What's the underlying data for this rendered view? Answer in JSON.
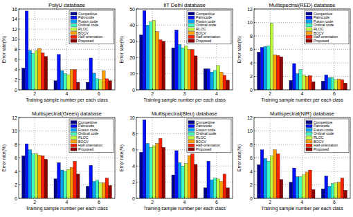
{
  "chart_data": [
    {
      "type": "bar",
      "title": "PolyU database",
      "x_label": "Training sample number per each class",
      "y_label": "Error rate(%)",
      "categories": [
        "2",
        "4",
        "6"
      ],
      "ylim": [
        0,
        16
      ],
      "yticks": [
        0,
        2,
        4,
        6,
        8,
        10,
        12,
        14,
        16
      ],
      "grid": true,
      "legend": "upper-right",
      "series": [
        {
          "name": "Competitive",
          "color": "#00008f",
          "values": [
            4.3,
            1.8,
            1.5
          ]
        },
        {
          "name": "Palmcode",
          "color": "#0010ff",
          "values": [
            15.6,
            7.0,
            6.3
          ]
        },
        {
          "name": "Fusion code",
          "color": "#00a0ff",
          "values": [
            7.8,
            3.8,
            3.3
          ]
        },
        {
          "name": "Ordinal code",
          "color": "#40ffc0",
          "values": [
            7.2,
            3.2,
            2.2
          ]
        },
        {
          "name": "RLOC",
          "color": "#c0ff40",
          "values": [
            7.8,
            3.0,
            2.0
          ]
        },
        {
          "name": "BOCV",
          "color": "#ffa000",
          "values": [
            8.2,
            4.0,
            3.8
          ]
        },
        {
          "name": "Half-orientation",
          "color": "#ff2000",
          "values": [
            7.3,
            4.0,
            2.2
          ]
        },
        {
          "name": "Proposed",
          "color": "#900000",
          "values": [
            6.6,
            1.5,
            1.8
          ]
        }
      ]
    },
    {
      "type": "bar",
      "title": "IIT Delhi database",
      "x_label": "Training sample number per each class",
      "y_label": "Error rate(%)",
      "categories": [
        "2",
        "3",
        "4"
      ],
      "ylim": [
        0,
        50
      ],
      "yticks": [
        0,
        10,
        20,
        30,
        40,
        50
      ],
      "grid": true,
      "legend": "upper-right",
      "series": [
        {
          "name": "Competitive",
          "color": "#00008f",
          "values": [
            34,
            26,
            13
          ]
        },
        {
          "name": "Palmcode",
          "color": "#0010ff",
          "values": [
            49,
            37,
            13
          ]
        },
        {
          "name": "Fusion code",
          "color": "#00a0ff",
          "values": [
            40,
            28,
            11
          ]
        },
        {
          "name": "Ordinal code",
          "color": "#40ffc0",
          "values": [
            42,
            26,
            12
          ]
        },
        {
          "name": "RLOC",
          "color": "#c0ff40",
          "values": [
            43,
            27,
            15
          ]
        },
        {
          "name": "BOCV",
          "color": "#ffa000",
          "values": [
            36,
            25,
            11
          ]
        },
        {
          "name": "Half-orientation",
          "color": "#ff2000",
          "values": [
            31,
            25,
            9
          ]
        },
        {
          "name": "Proposed",
          "color": "#900000",
          "values": [
            30,
            21,
            6
          ]
        }
      ]
    },
    {
      "type": "bar",
      "title": "Multispectral(RED) database",
      "x_label": "Training sample number per each class",
      "y_label": "Error rate(%)",
      "categories": [
        "2",
        "4",
        "6"
      ],
      "ylim": [
        0,
        12
      ],
      "yticks": [
        0,
        2,
        4,
        6,
        8,
        10,
        12
      ],
      "grid": true,
      "legend": "upper-right",
      "series": [
        {
          "name": "Competitive",
          "color": "#00008f",
          "values": [
            5.6,
            1.4,
            1.3
          ]
        },
        {
          "name": "Palmcode",
          "color": "#0010ff",
          "values": [
            6.3,
            3.9,
            2.2
          ]
        },
        {
          "name": "Fusion code",
          "color": "#00a0ff",
          "values": [
            6.4,
            2.4,
            1.8
          ]
        },
        {
          "name": "Ordinal code",
          "color": "#40ffc0",
          "values": [
            6.5,
            3.0,
            1.8
          ]
        },
        {
          "name": "RLOC",
          "color": "#c0ff40",
          "values": [
            9.9,
            2.2,
            1.5
          ]
        },
        {
          "name": "BOCV",
          "color": "#ffa000",
          "values": [
            5.2,
            2.0,
            1.6
          ]
        },
        {
          "name": "Half-orientation",
          "color": "#ff2000",
          "values": [
            5.1,
            2.1,
            1.5
          ]
        },
        {
          "name": "Proposed",
          "color": "#900000",
          "values": [
            4.9,
            1.2,
            1.0
          ]
        }
      ]
    },
    {
      "type": "bar",
      "title": "Multispectral(Green) database",
      "x_label": "Training sample number per each class",
      "y_label": "Error rate(%)",
      "categories": [
        "2",
        "4",
        "6"
      ],
      "ylim": [
        0,
        12
      ],
      "yticks": [
        0,
        2,
        4,
        6,
        8,
        10,
        12
      ],
      "grid": true,
      "legend": "upper-right",
      "series": [
        {
          "name": "Competitive",
          "color": "#00008f",
          "values": [
            6.3,
            2.9,
            1.8
          ]
        },
        {
          "name": "Palmcode",
          "color": "#0010ff",
          "values": [
            8.1,
            5.3,
            4.9
          ]
        },
        {
          "name": "Fusion code",
          "color": "#00a0ff",
          "values": [
            7.2,
            4.2,
            2.5
          ]
        },
        {
          "name": "Ordinal code",
          "color": "#40ffc0",
          "values": [
            6.6,
            4.0,
            2.7
          ]
        },
        {
          "name": "RLOC",
          "color": "#c0ff40",
          "values": [
            6.6,
            4.3,
            2.3
          ]
        },
        {
          "name": "BOCV",
          "color": "#ffa000",
          "values": [
            6.4,
            4.6,
            2.3
          ]
        },
        {
          "name": "Half-orientation",
          "color": "#ff2000",
          "values": [
            6.3,
            5.5,
            3.0
          ]
        },
        {
          "name": "Proposed",
          "color": "#900000",
          "values": [
            5.8,
            3.6,
            1.9
          ]
        }
      ]
    },
    {
      "type": "bar",
      "title": "Multispectral(Bleu) database",
      "x_label": "Training sample number per each class",
      "y_label": "Error rate(%)",
      "categories": [
        "2",
        "4",
        "6"
      ],
      "ylim": [
        0,
        10
      ],
      "yticks": [
        0,
        2,
        4,
        6,
        8,
        10
      ],
      "grid": true,
      "legend": "upper-right",
      "series": [
        {
          "name": "Competitive",
          "color": "#00008f",
          "values": [
            5.7,
            2.9,
            1.3
          ]
        },
        {
          "name": "Palmcode",
          "color": "#0010ff",
          "values": [
            9.7,
            5.9,
            4.6
          ]
        },
        {
          "name": "Fusion code",
          "color": "#00a0ff",
          "values": [
            6.8,
            4.4,
            2.3
          ]
        },
        {
          "name": "Ordinal code",
          "color": "#40ffc0",
          "values": [
            6.3,
            4.0,
            2.5
          ]
        },
        {
          "name": "RLOC",
          "color": "#c0ff40",
          "values": [
            6.5,
            4.3,
            2.4
          ]
        },
        {
          "name": "BOCV",
          "color": "#ffa000",
          "values": [
            6.8,
            5.3,
            2.1
          ]
        },
        {
          "name": "Half-orientation",
          "color": "#ff2000",
          "values": [
            7.4,
            5.5,
            3.0
          ]
        },
        {
          "name": "Proposed",
          "color": "#900000",
          "values": [
            6.3,
            4.2,
            1.3
          ]
        }
      ]
    },
    {
      "type": "bar",
      "title": "Multispectral(NIR) database",
      "x_label": "Training sample number per each class",
      "y_label": "Error rate(%)",
      "categories": [
        "2",
        "4",
        "6"
      ],
      "ylim": [
        0,
        12
      ],
      "yticks": [
        0,
        2,
        4,
        6,
        8,
        10,
        12
      ],
      "grid": true,
      "legend": "upper-right",
      "series": [
        {
          "name": "Competitive",
          "color": "#00008f",
          "values": [
            5.0,
            2.4,
            1.4
          ]
        },
        {
          "name": "Palmcode",
          "color": "#0010ff",
          "values": [
            7.2,
            4.5,
            3.3
          ]
        },
        {
          "name": "Fusion code",
          "color": "#00a0ff",
          "values": [
            5.9,
            3.2,
            1.8
          ]
        },
        {
          "name": "Ordinal code",
          "color": "#40ffc0",
          "values": [
            5.5,
            3.2,
            2.2
          ]
        },
        {
          "name": "RLOC",
          "color": "#c0ff40",
          "values": [
            6.3,
            3.5,
            2.3
          ]
        },
        {
          "name": "BOCV",
          "color": "#ffa000",
          "values": [
            7.2,
            3.9,
            2.4
          ]
        },
        {
          "name": "Half-orientation",
          "color": "#ff2000",
          "values": [
            6.6,
            4.2,
            3.0
          ]
        },
        {
          "name": "Proposed",
          "color": "#900000",
          "values": [
            2.8,
            1.3,
            1.2
          ]
        }
      ]
    }
  ]
}
